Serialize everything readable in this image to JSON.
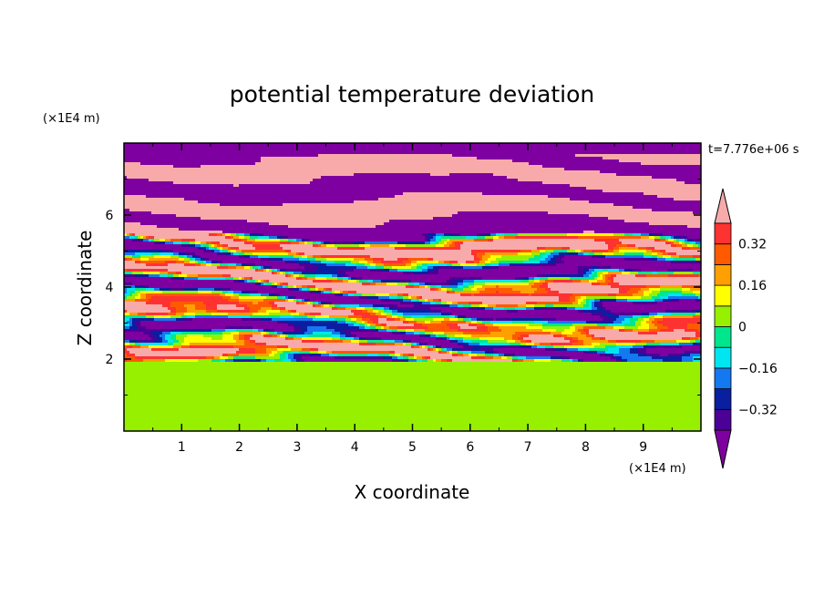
{
  "chart_data": {
    "type": "heatmap",
    "title": "potential temperature deviation",
    "xlabel": "X coordinate",
    "ylabel": "Z coordinate",
    "x_unit": "(×1E4 m)",
    "z_unit": "(×1E4 m)",
    "time_label": "t=7.776e+06 s",
    "xlim": [
      0,
      10
    ],
    "zlim": [
      0,
      8
    ],
    "x_ticks": [
      1,
      2,
      3,
      4,
      5,
      6,
      7,
      8,
      9
    ],
    "z_ticks": [
      2,
      4,
      6
    ],
    "colorbar": {
      "levels": [
        -0.4,
        -0.32,
        -0.24,
        -0.16,
        -0.08,
        0,
        0.08,
        0.16,
        0.24,
        0.32,
        0.4
      ],
      "tick_values": [
        "0.32",
        "0.16",
        "0",
        "−0.16",
        "−0.32"
      ],
      "colors": [
        "#7f00a0",
        "#4b0096",
        "#0a1ea0",
        "#1478f0",
        "#00e6f0",
        "#00e68c",
        "#96f000",
        "#ffff00",
        "#ffa000",
        "#ff5a00",
        "#ff3232",
        "#f8aaaa"
      ],
      "extend": "both"
    }
  }
}
